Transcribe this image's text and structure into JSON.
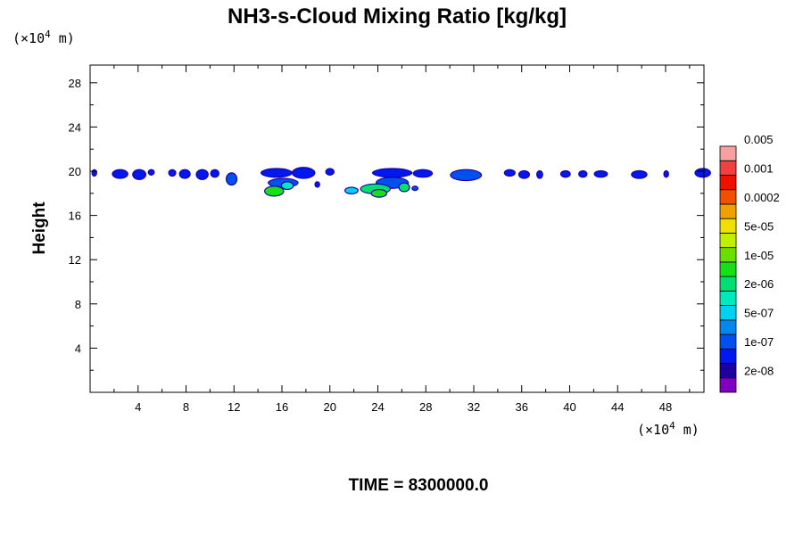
{
  "chart_data": {
    "type": "heatmap",
    "title": "NH3-s-Cloud Mixing Ratio [kg/kg]",
    "ylabel": "Height",
    "x_unit": {
      "prefix": "(×10",
      "exp": "4",
      "suffix": " m)"
    },
    "y_unit": {
      "prefix": "(×10",
      "exp": "4",
      "suffix": " m)"
    },
    "xlim": [
      0,
      51.2
    ],
    "ylim": [
      0,
      29.6
    ],
    "x_ticks": [
      4,
      8,
      12,
      16,
      20,
      24,
      28,
      32,
      36,
      40,
      44,
      48
    ],
    "y_ticks": [
      4,
      8,
      12,
      16,
      20,
      24,
      28
    ],
    "colorbar": {
      "colors": [
        "#7f00bf",
        "#1e00a0",
        "#0018f0",
        "#0050f0",
        "#0088f0",
        "#00d2f0",
        "#00e8c0",
        "#00e070",
        "#18e018",
        "#6ae000",
        "#c0f000",
        "#f0e000",
        "#f0a000",
        "#f05000",
        "#f01000",
        "#f04040",
        "#f8a0a0"
      ],
      "labels": [
        "2e-08",
        "1e-07",
        "5e-07",
        "2e-06",
        "1e-05",
        "5e-05",
        "0.0002",
        "0.001",
        "0.005"
      ]
    },
    "cloud_cells": [
      {
        "x": 0.2,
        "y": 19.6,
        "w": 0.3,
        "h": 0.5,
        "level": 2
      },
      {
        "x": 1.9,
        "y": 19.4,
        "w": 1.2,
        "h": 0.7,
        "level": 2
      },
      {
        "x": 3.6,
        "y": 19.3,
        "w": 1.0,
        "h": 0.8,
        "level": 2
      },
      {
        "x": 4.9,
        "y": 19.7,
        "w": 0.4,
        "h": 0.4,
        "level": 2
      },
      {
        "x": 6.6,
        "y": 19.6,
        "w": 0.5,
        "h": 0.5,
        "level": 2
      },
      {
        "x": 7.5,
        "y": 19.4,
        "w": 0.8,
        "h": 0.7,
        "level": 2
      },
      {
        "x": 8.9,
        "y": 19.3,
        "w": 0.9,
        "h": 0.8,
        "level": 2
      },
      {
        "x": 10.1,
        "y": 19.5,
        "w": 0.6,
        "h": 0.6,
        "level": 2
      },
      {
        "x": 11.4,
        "y": 18.8,
        "w": 0.8,
        "h": 1.0,
        "level": 3
      },
      {
        "x": 14.3,
        "y": 19.5,
        "w": 2.5,
        "h": 0.7,
        "level": 2
      },
      {
        "x": 16.9,
        "y": 19.4,
        "w": 1.8,
        "h": 0.9,
        "level": 2
      },
      {
        "x": 14.9,
        "y": 18.6,
        "w": 2.4,
        "h": 0.7,
        "level": 3
      },
      {
        "x": 14.6,
        "y": 17.8,
        "w": 1.5,
        "h": 0.8,
        "level": 8
      },
      {
        "x": 16.0,
        "y": 18.4,
        "w": 0.9,
        "h": 0.6,
        "level": 6
      },
      {
        "x": 18.8,
        "y": 18.6,
        "w": 0.3,
        "h": 0.4,
        "level": 2
      },
      {
        "x": 19.7,
        "y": 19.7,
        "w": 0.6,
        "h": 0.5,
        "level": 2
      },
      {
        "x": 23.6,
        "y": 19.5,
        "w": 3.2,
        "h": 0.7,
        "level": 2
      },
      {
        "x": 27.0,
        "y": 19.5,
        "w": 1.5,
        "h": 0.6,
        "level": 2
      },
      {
        "x": 23.9,
        "y": 18.5,
        "w": 2.6,
        "h": 0.9,
        "level": 3
      },
      {
        "x": 22.6,
        "y": 18.0,
        "w": 2.4,
        "h": 0.8,
        "level": 7
      },
      {
        "x": 23.5,
        "y": 17.7,
        "w": 1.2,
        "h": 0.6,
        "level": 8
      },
      {
        "x": 21.3,
        "y": 18.0,
        "w": 1.0,
        "h": 0.5,
        "level": 5
      },
      {
        "x": 25.8,
        "y": 18.2,
        "w": 0.8,
        "h": 0.7,
        "level": 7
      },
      {
        "x": 26.9,
        "y": 18.3,
        "w": 0.4,
        "h": 0.3,
        "level": 3
      },
      {
        "x": 30.1,
        "y": 19.2,
        "w": 2.5,
        "h": 0.9,
        "level": 3
      },
      {
        "x": 34.6,
        "y": 19.6,
        "w": 0.8,
        "h": 0.5,
        "level": 2
      },
      {
        "x": 35.8,
        "y": 19.4,
        "w": 0.8,
        "h": 0.6,
        "level": 2
      },
      {
        "x": 37.3,
        "y": 19.4,
        "w": 0.4,
        "h": 0.6,
        "level": 2
      },
      {
        "x": 39.3,
        "y": 19.5,
        "w": 0.7,
        "h": 0.5,
        "level": 2
      },
      {
        "x": 40.8,
        "y": 19.5,
        "w": 0.6,
        "h": 0.5,
        "level": 2
      },
      {
        "x": 42.1,
        "y": 19.5,
        "w": 1.0,
        "h": 0.5,
        "level": 2
      },
      {
        "x": 45.2,
        "y": 19.4,
        "w": 1.2,
        "h": 0.6,
        "level": 2
      },
      {
        "x": 47.9,
        "y": 19.5,
        "w": 0.3,
        "h": 0.5,
        "level": 2
      },
      {
        "x": 50.5,
        "y": 19.5,
        "w": 1.2,
        "h": 0.7,
        "level": 2
      }
    ]
  },
  "footer": {
    "time_label": "TIME = 8300000.0"
  }
}
